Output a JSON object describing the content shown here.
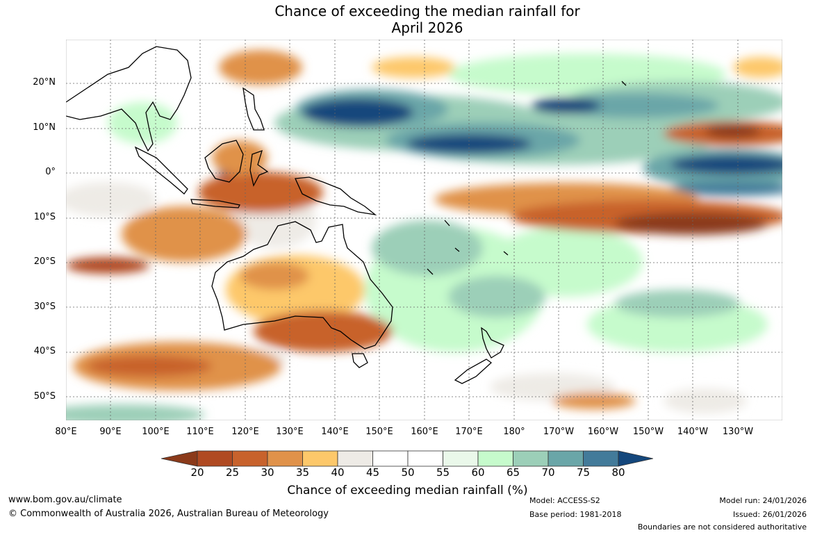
{
  "title": {
    "line1": "Chance of exceeding the median rainfall for",
    "line2": "April 2026"
  },
  "map": {
    "latitude_labels": [
      "20°N",
      "10°N",
      "0°",
      "10°S",
      "20°S",
      "30°S",
      "40°S",
      "50°S"
    ],
    "longitude_labels": [
      "80°E",
      "90°E",
      "100°E",
      "110°E",
      "120°E",
      "130°E",
      "140°E",
      "150°E",
      "160°E",
      "170°E",
      "180°",
      "170°W",
      "160°W",
      "150°W",
      "140°W",
      "130°W"
    ],
    "region": "Indo-Pacific",
    "features": [
      "Australia",
      "New Zealand",
      "Indonesia",
      "Papua New Guinea",
      "Southeast Asia"
    ]
  },
  "colorbar": {
    "ticks": [
      "20",
      "25",
      "30",
      "35",
      "40",
      "45",
      "50",
      "55",
      "60",
      "65",
      "70",
      "75",
      "80"
    ],
    "colors": [
      "#8b3a1a",
      "#b04a22",
      "#c8622c",
      "#e0924a",
      "#fdc86a",
      "#eeebe6",
      "#ffffff",
      "#ffffff",
      "#eaf8ea",
      "#c6fbcc",
      "#9ccfb8",
      "#6aa6a8",
      "#437b9a",
      "#14477c"
    ],
    "title": "Chance of exceeding median rainfall (%)"
  },
  "footer": {
    "website": "www.bom.gov.au/climate",
    "copyright": "© Commonwealth of Australia 2026, Australian Bureau of Meteorology",
    "model": "Model: ACCESS-S2",
    "base_period": "Base period: 1981-2018",
    "model_run": "Model run: 24/01/2026",
    "issued": "Issued: 26/01/2026",
    "disclaimer": "Boundaries are not considered authoritative"
  }
}
